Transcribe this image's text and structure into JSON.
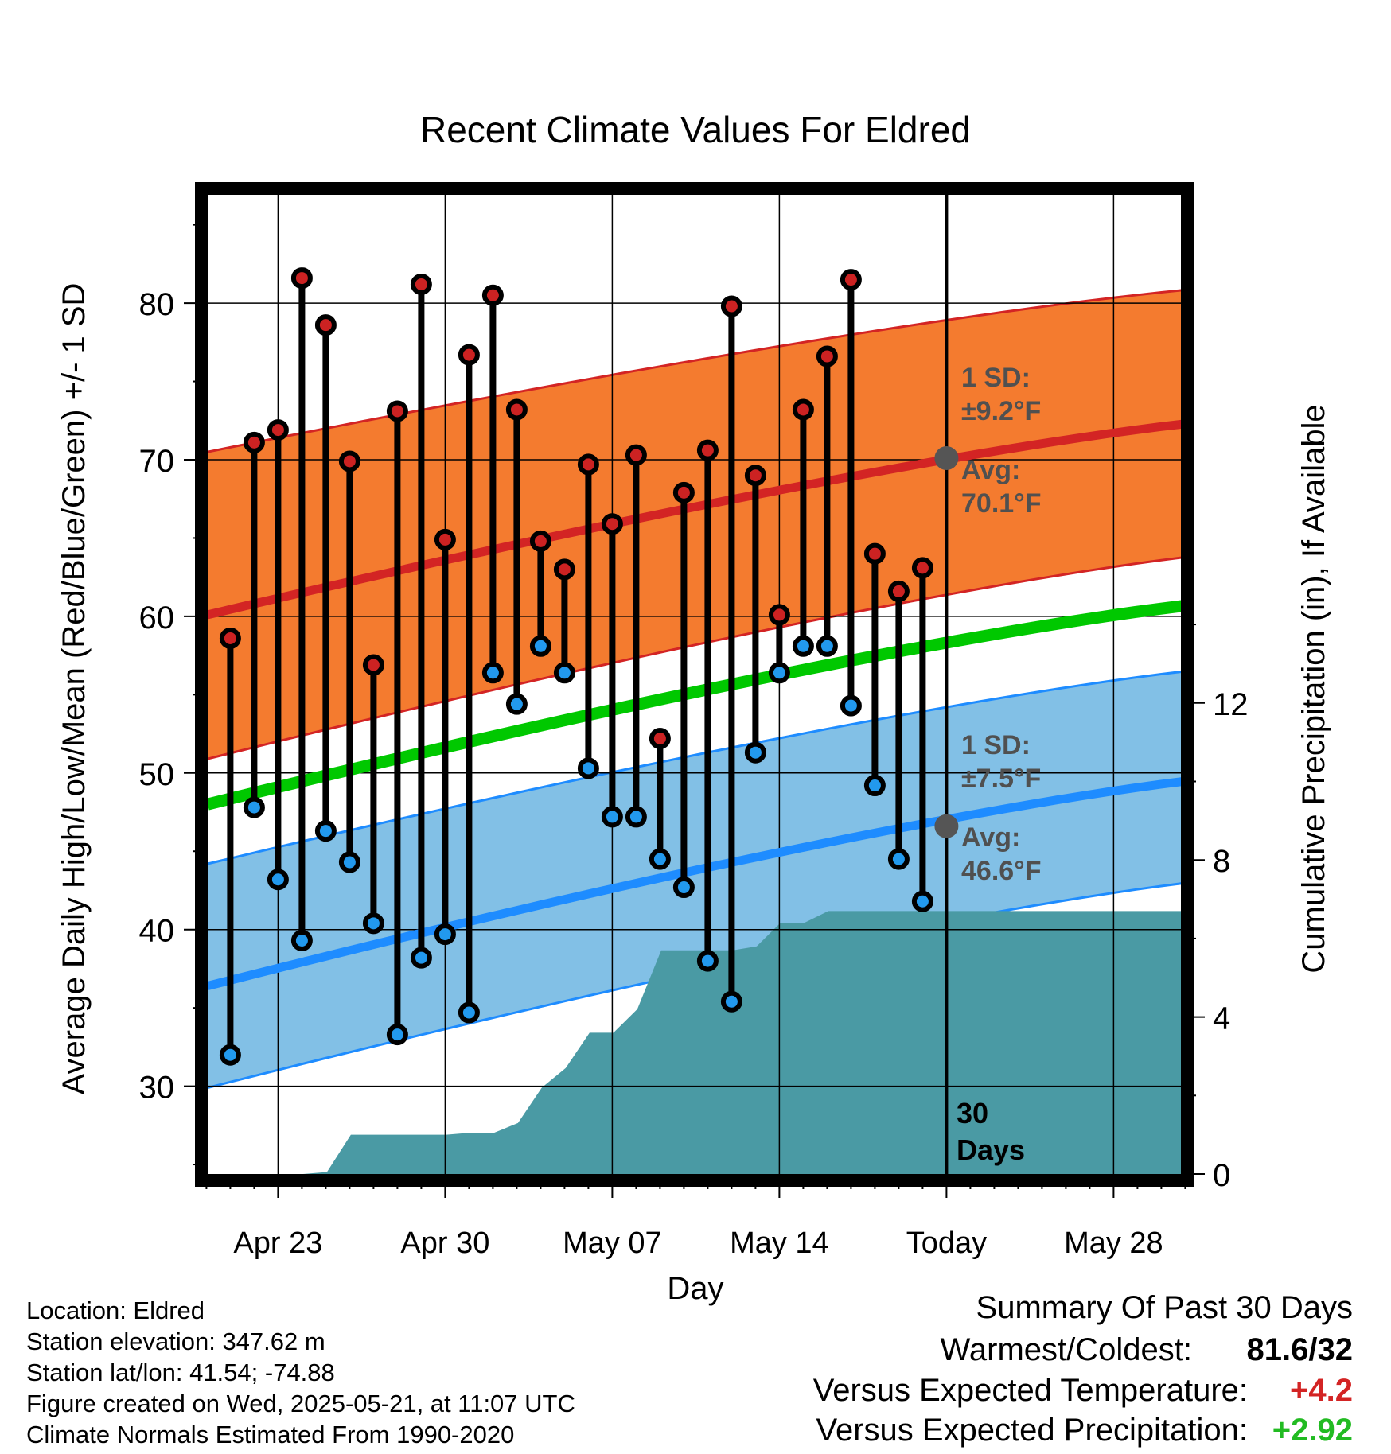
{
  "chart_data": {
    "type": "line",
    "title": "Recent Climate Values For Eldred",
    "xlabel": "Day",
    "ylabel": "Average Daily High/Low/Mean (Red/Blue/Green) +/- 1 SD",
    "y2label": "Cumulative Precipitation (in), If Available",
    "ylim": [
      24.5,
      86
    ],
    "y2lim": [
      0,
      24.2
    ],
    "yticks": [
      30,
      40,
      50,
      60,
      70,
      80
    ],
    "y2ticks": [
      0,
      4,
      8,
      12
    ],
    "x_tick_labels": [
      "Apr 23",
      "Apr 30",
      "May 07",
      "May 14",
      "Today",
      "May 28"
    ],
    "grid": true,
    "highs": [
      58.6,
      71.1,
      71.9,
      81.6,
      78.6,
      69.9,
      56.9,
      73.1,
      81.2,
      64.9,
      76.7,
      80.5,
      73.2,
      64.8,
      63.0,
      69.7,
      65.9,
      70.3,
      52.2,
      67.9,
      70.6,
      79.8,
      69.0,
      60.1,
      73.2,
      76.6,
      81.5,
      64.0,
      61.6,
      63.1
    ],
    "lows": [
      32.0,
      47.8,
      43.2,
      39.3,
      46.3,
      44.3,
      40.4,
      33.3,
      38.2,
      39.7,
      34.7,
      56.4,
      54.4,
      58.1,
      56.4,
      50.3,
      47.2,
      47.2,
      44.5,
      42.7,
      38.0,
      35.4,
      51.3,
      56.4,
      58.1,
      58.1,
      54.3,
      49.2,
      44.5,
      41.8
    ],
    "series": [
      {
        "name": "Avg High",
        "start": 60.1,
        "end": 72.6,
        "sd_start": 9.2,
        "sd_end": 8.5
      },
      {
        "name": "Avg Mean",
        "start": 48.0,
        "end": 61.0
      },
      {
        "name": "Avg Low",
        "start": 36.4,
        "end": 49.8,
        "sd_start": 6.5,
        "sd_end": 6.5
      }
    ],
    "precip_cumulative": [
      0,
      0,
      0,
      0,
      0.05,
      1.0,
      1.0,
      1.0,
      1.0,
      1.0,
      1.05,
      1.05,
      1.3,
      2.2,
      2.7,
      3.6,
      3.6,
      4.2,
      5.7,
      5.7,
      5.7,
      5.7,
      5.8,
      6.4,
      6.4,
      6.7,
      6.7,
      6.7,
      6.7,
      6.7
    ],
    "precip_to_end": 6.7,
    "annotations": {
      "high_sd_label": "1 SD:",
      "high_sd_value": "±9.2°F",
      "high_avg_label": "Avg:",
      "high_avg_value": "70.1°F",
      "low_sd_label": "1 SD:",
      "low_sd_value": "±7.5°F",
      "low_avg_label": "Avg:",
      "low_avg_value": "46.6°F",
      "today_marker_high": 70.1,
      "today_marker_low": 46.6,
      "days_label_1": "30",
      "days_label_2": "Days"
    },
    "colors": {
      "high_band": "#f47b2f",
      "high_line": "#d32424",
      "mean_line": "#00c800",
      "low_band": "#82c0e6",
      "low_line": "#1e8cff",
      "precip": "#4a9aa4",
      "high_dot": "#cc2222",
      "low_dot": "#2299ee",
      "marker": "#555555"
    }
  },
  "info": {
    "location": "Location: Eldred",
    "elevation": "Station elevation: 347.62 m",
    "latlon": "Station lat/lon: 41.54; -74.88",
    "created": "Figure created on Wed, 2025-05-21, at 11:07 UTC",
    "normals": "Climate Normals Estimated From 1990-2020"
  },
  "summary": {
    "title": "Summary Of Past 30 Days",
    "warm_cold_label": "Warmest/Coldest:",
    "warm_cold_value": "81.6/32",
    "temp_label": "Versus Expected Temperature:",
    "temp_value": "+4.2",
    "precip_label": "Versus Expected Precipitation:",
    "precip_value": "+2.92",
    "temp_color": "#d32424",
    "precip_color": "#22bb22"
  }
}
